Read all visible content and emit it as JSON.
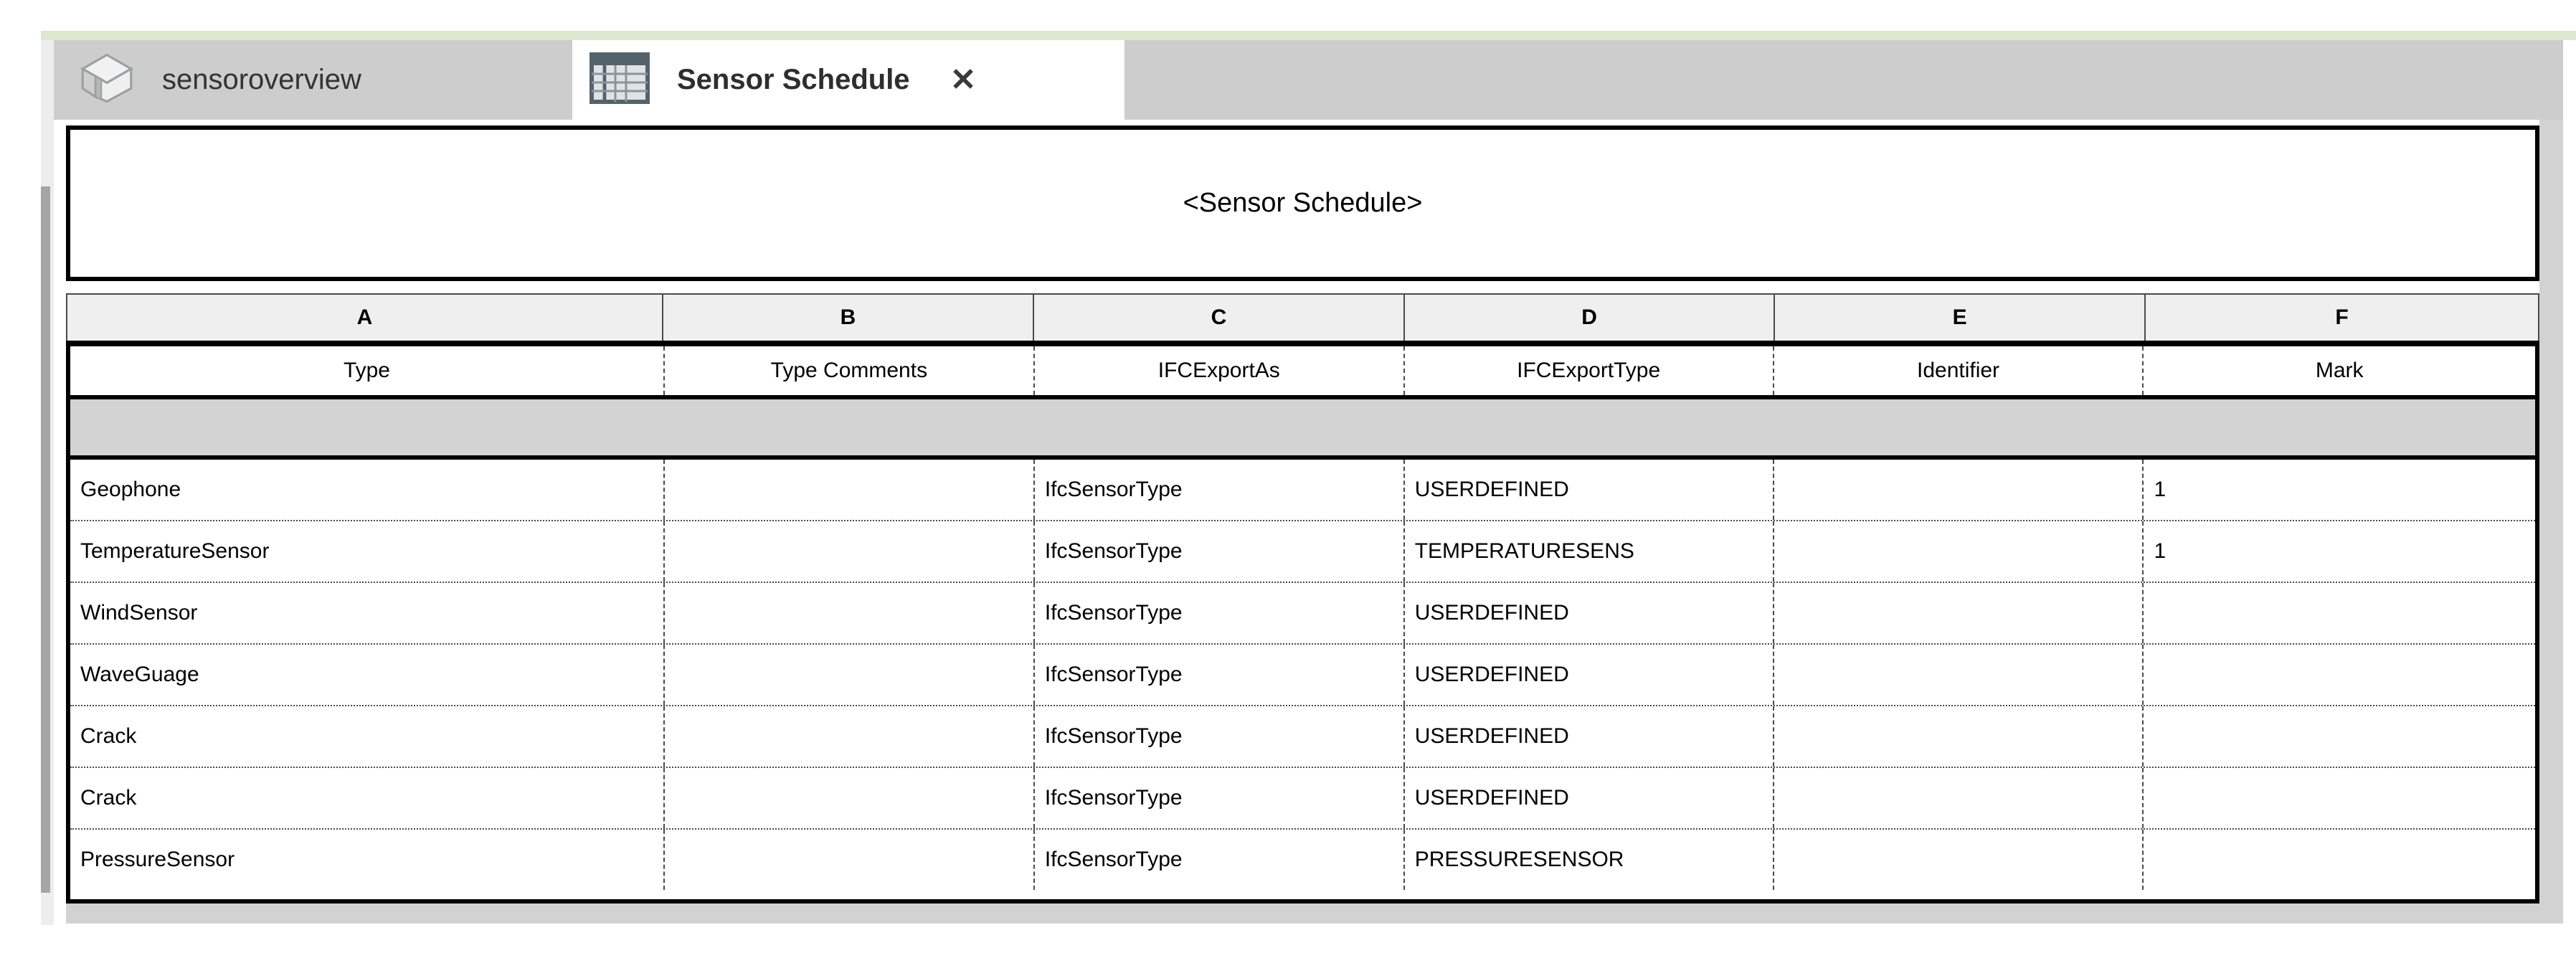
{
  "tabs": [
    {
      "label": "sensoroverview",
      "icon": "home-3d-icon",
      "active": false
    },
    {
      "label": "Sensor Schedule",
      "icon": "schedule-table-icon",
      "active": true,
      "close_glyph": "✕"
    }
  ],
  "schedule": {
    "title": "<Sensor Schedule>",
    "column_letters": [
      "A",
      "B",
      "C",
      "D",
      "E",
      "F"
    ],
    "column_headers": [
      "Type",
      "Type Comments",
      "IFCExportAs",
      "IFCExportType",
      "Identifier",
      "Mark"
    ],
    "rows": [
      [
        "Geophone",
        "",
        "IfcSensorType",
        "USERDEFINED",
        "",
        "1"
      ],
      [
        "TemperatureSensor",
        "",
        "IfcSensorType",
        "TEMPERATURESENS",
        "",
        "1"
      ],
      [
        "WindSensor",
        "",
        "IfcSensorType",
        "USERDEFINED",
        "",
        ""
      ],
      [
        "WaveGuage",
        "",
        "IfcSensorType",
        "USERDEFINED",
        "",
        ""
      ],
      [
        "Crack",
        "",
        "IfcSensorType",
        "USERDEFINED",
        "",
        ""
      ],
      [
        "Crack",
        "",
        "IfcSensorType",
        "USERDEFINED",
        "",
        ""
      ],
      [
        "PressureSensor",
        "",
        "IfcSensorType",
        "PRESSURESENSOR",
        "",
        ""
      ]
    ]
  },
  "colors": {
    "accent_green": "#dce7d0",
    "tab_bar": "#cdcdcd",
    "active_tab_bg": "#ffffff",
    "table_border": "#000000",
    "letter_row_bg": "#efefef",
    "group_row_bg": "#d3d3d3",
    "side_strip": "#d2d2d2",
    "tab_text": "#333333",
    "text": "#000000"
  }
}
